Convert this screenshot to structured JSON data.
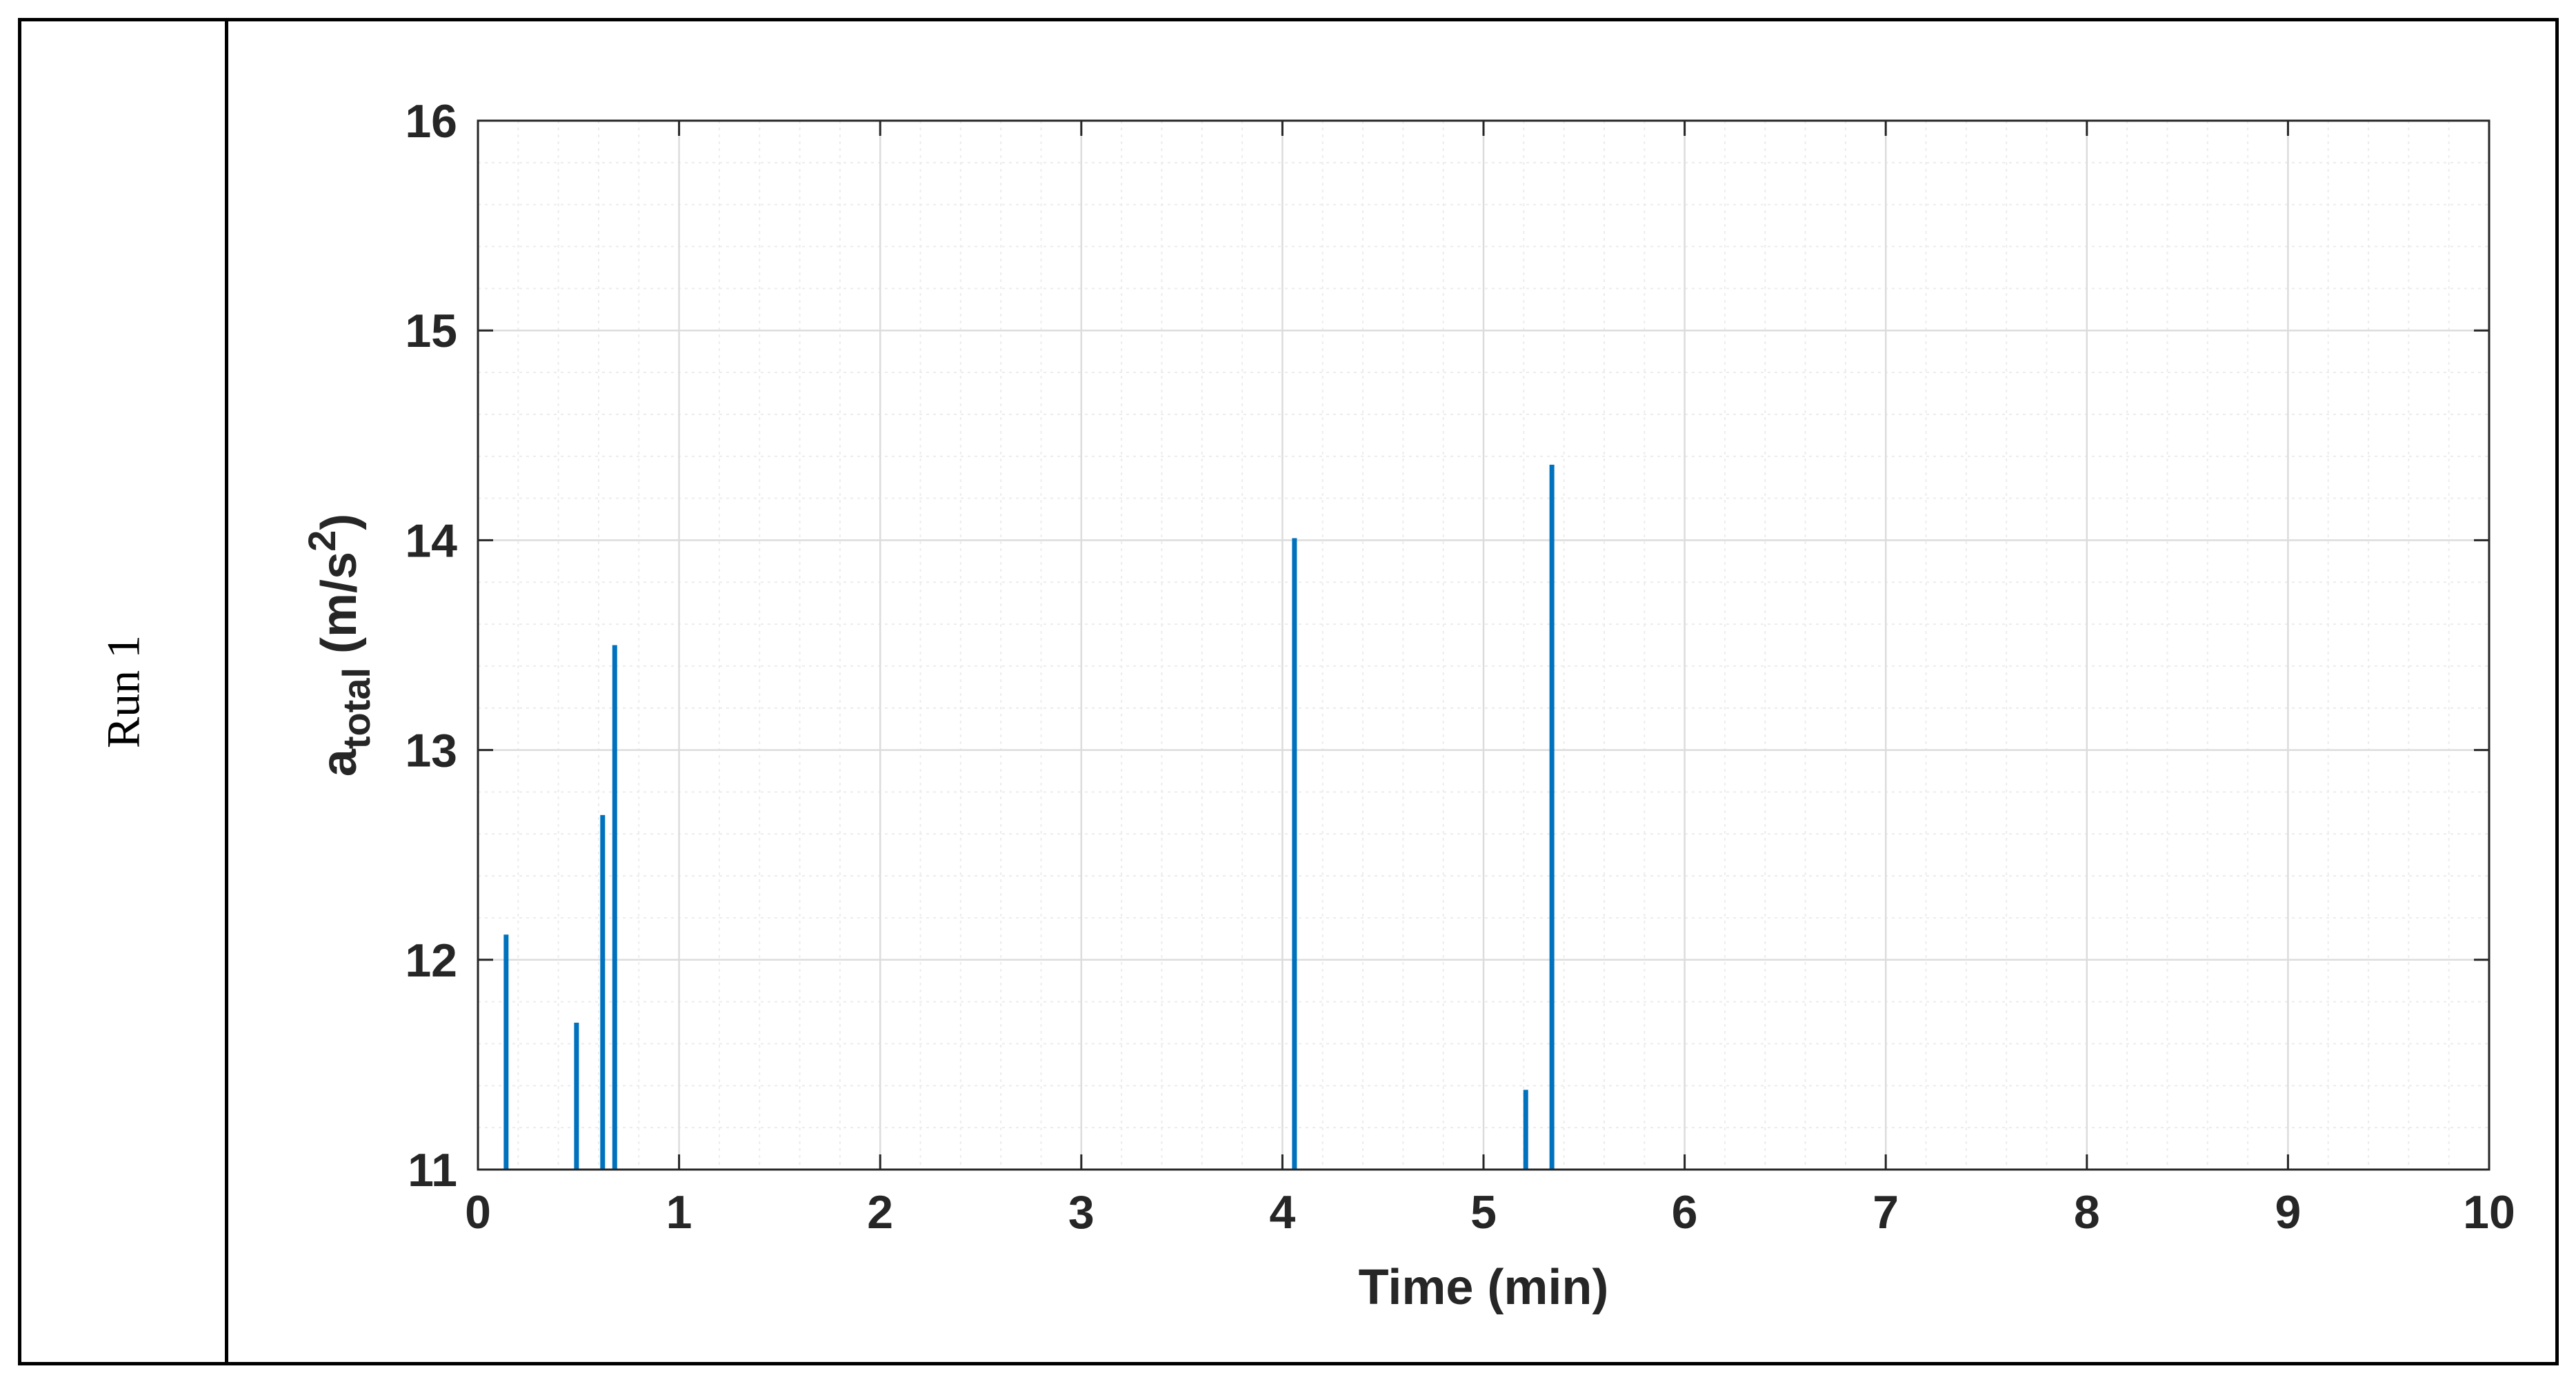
{
  "row_label": "Run 1",
  "chart_data": {
    "type": "bar",
    "title": "",
    "xlabel": "Time (min)",
    "ylabel_main": "a",
    "ylabel_sub": "total",
    "ylabel_unit_open": " (m/s",
    "ylabel_unit_sup": "2",
    "ylabel_unit_close": ")",
    "xlim": [
      0,
      10
    ],
    "ylim": [
      11,
      16
    ],
    "xticks": [
      0,
      1,
      2,
      3,
      4,
      5,
      6,
      7,
      8,
      9,
      10
    ],
    "yticks": [
      11,
      12,
      13,
      14,
      15,
      16
    ],
    "grid": true,
    "minor_grid": true,
    "series": [
      {
        "color": "#0072BD",
        "x": [
          0.14,
          0.49,
          0.62,
          0.68,
          4.06,
          5.21,
          5.34
        ],
        "values": [
          12.12,
          11.7,
          12.69,
          13.5,
          14.01,
          11.38,
          14.36
        ]
      }
    ]
  }
}
